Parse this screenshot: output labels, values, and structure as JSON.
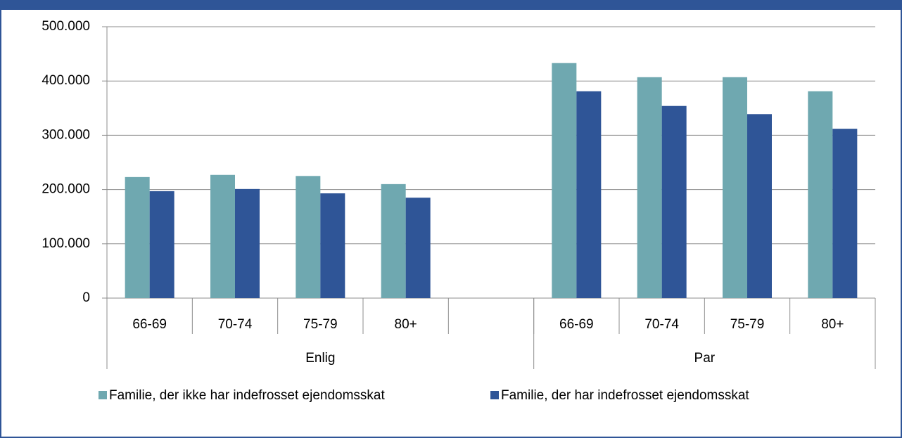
{
  "chart_data": {
    "type": "bar",
    "categories": [
      "66-69",
      "70-74",
      "75-79",
      "80+",
      null,
      "66-69",
      "70-74",
      "75-79",
      "80+"
    ],
    "groups": [
      {
        "name": "Enlig",
        "count": 5
      },
      {
        "name": "Par",
        "count": 4
      }
    ],
    "series": [
      {
        "name": "Familie, der ikke har indefrosset ejendomsskat",
        "color": "#6fa8b0",
        "values": [
          223000,
          227000,
          225000,
          210000,
          null,
          433000,
          407000,
          407000,
          381000
        ]
      },
      {
        "name": "Familie, der har indefrosset ejendomsskat",
        "color": "#2f5597",
        "values": [
          197000,
          201000,
          193000,
          185000,
          null,
          381000,
          354000,
          339000,
          312000
        ]
      }
    ],
    "ylim": [
      0,
      500000
    ],
    "yticks": [
      0,
      {
        "value": 100000,
        "label": "100.000"
      },
      {
        "value": 200000,
        "label": "200.000"
      },
      {
        "value": 300000,
        "label": "300.000"
      },
      {
        "value": 400000,
        "label": "400.000"
      },
      {
        "value": 500000,
        "label": "500.000"
      }
    ],
    "grid": true,
    "legend": "bottom"
  }
}
